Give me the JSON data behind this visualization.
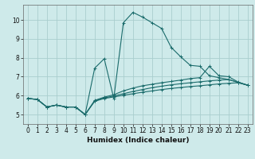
{
  "xlabel": "Humidex (Indice chaleur)",
  "background_color": "#ceeaea",
  "plot_bg_color": "#ceeaea",
  "grid_color": "#aacece",
  "line_color": "#1a6b6b",
  "xlim": [
    -0.5,
    23.5
  ],
  "ylim": [
    4.5,
    10.8
  ],
  "xticks": [
    0,
    1,
    2,
    3,
    4,
    5,
    6,
    7,
    8,
    9,
    10,
    11,
    12,
    13,
    14,
    15,
    16,
    17,
    18,
    19,
    20,
    21,
    22,
    23
  ],
  "yticks": [
    5,
    6,
    7,
    8,
    9,
    10
  ],
  "series": [
    {
      "x": [
        0,
        1,
        2,
        3,
        4,
        5,
        6,
        7,
        8,
        9,
        10,
        11,
        12,
        13,
        14,
        15,
        16,
        17,
        18,
        19,
        20,
        21,
        22,
        23
      ],
      "y": [
        5.85,
        5.8,
        5.4,
        5.5,
        5.4,
        5.4,
        5.0,
        7.45,
        7.95,
        5.85,
        9.85,
        10.4,
        10.15,
        9.85,
        9.55,
        8.55,
        8.05,
        7.6,
        7.55,
        7.05,
        6.95,
        6.85,
        6.7,
        6.55
      ]
    },
    {
      "x": [
        0,
        1,
        2,
        3,
        4,
        5,
        6,
        7,
        8,
        9,
        10,
        11,
        12,
        13,
        14,
        15,
        16,
        17,
        18,
        19,
        20,
        21,
        22,
        23
      ],
      "y": [
        5.85,
        5.8,
        5.4,
        5.5,
        5.4,
        5.4,
        5.0,
        5.75,
        5.92,
        6.05,
        6.25,
        6.4,
        6.52,
        6.6,
        6.68,
        6.75,
        6.82,
        6.9,
        6.95,
        7.55,
        7.05,
        7.0,
        6.72,
        6.55
      ]
    },
    {
      "x": [
        0,
        1,
        2,
        3,
        4,
        5,
        6,
        7,
        8,
        9,
        10,
        11,
        12,
        13,
        14,
        15,
        16,
        17,
        18,
        19,
        20,
        21,
        22,
        23
      ],
      "y": [
        5.85,
        5.8,
        5.4,
        5.5,
        5.4,
        5.4,
        5.0,
        5.72,
        5.88,
        5.98,
        6.1,
        6.22,
        6.32,
        6.42,
        6.5,
        6.57,
        6.63,
        6.68,
        6.73,
        6.78,
        6.82,
        6.85,
        6.7,
        6.55
      ]
    },
    {
      "x": [
        0,
        1,
        2,
        3,
        4,
        5,
        6,
        7,
        8,
        9,
        10,
        11,
        12,
        13,
        14,
        15,
        16,
        17,
        18,
        19,
        20,
        21,
        22,
        23
      ],
      "y": [
        5.85,
        5.8,
        5.4,
        5.5,
        5.4,
        5.4,
        5.0,
        5.7,
        5.85,
        5.93,
        6.02,
        6.1,
        6.18,
        6.25,
        6.32,
        6.38,
        6.43,
        6.48,
        6.52,
        6.57,
        6.62,
        6.65,
        6.68,
        6.55
      ]
    }
  ]
}
